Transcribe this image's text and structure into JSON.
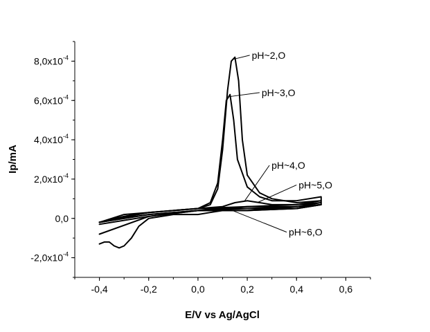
{
  "chart_data": {
    "type": "line",
    "title": "",
    "xlabel": "E/V vs Ag/AgCl",
    "ylabel": "Ip/mA",
    "xlim": [
      -0.5,
      0.7
    ],
    "ylim": [
      -0.0003,
      0.0009
    ],
    "grid": false,
    "legend": "none",
    "x_ticks": [
      {
        "v": -0.4,
        "label": "-0,4"
      },
      {
        "v": -0.2,
        "label": "-0,2"
      },
      {
        "v": 0.0,
        "label": "0,0"
      },
      {
        "v": 0.2,
        "label": "0,2"
      },
      {
        "v": 0.4,
        "label": "0,4"
      },
      {
        "v": 0.6,
        "label": "0,6"
      }
    ],
    "y_ticks": [
      {
        "v": 0.0008,
        "mant": "8,0x10",
        "exp": "-4"
      },
      {
        "v": 0.0006,
        "mant": "6,0x10",
        "exp": "-4"
      },
      {
        "v": 0.0004,
        "mant": "4,0x10",
        "exp": "-4"
      },
      {
        "v": 0.0002,
        "mant": "2,0x10",
        "exp": "-4"
      },
      {
        "v": 0.0,
        "mant": "0,0",
        "exp": ""
      },
      {
        "v": -0.0002,
        "mant": "-2,0x10",
        "exp": "-4"
      }
    ],
    "series": [
      {
        "label_id": "ph2",
        "points": [
          [
            -0.4,
            -2e-05
          ],
          [
            -0.3,
            1e-05
          ],
          [
            -0.2,
            3e-05
          ],
          [
            -0.1,
            4e-05
          ],
          [
            0.0,
            5e-05
          ],
          [
            0.05,
            7e-05
          ],
          [
            0.08,
            0.00015
          ],
          [
            0.1,
            0.00035
          ],
          [
            0.12,
            0.00065
          ],
          [
            0.135,
            0.0008
          ],
          [
            0.15,
            0.00082
          ],
          [
            0.165,
            0.0007
          ],
          [
            0.18,
            0.0004
          ],
          [
            0.2,
            0.00022
          ],
          [
            0.25,
            0.00013
          ],
          [
            0.3,
            0.0001
          ],
          [
            0.4,
            8e-05
          ],
          [
            0.5,
            9e-05
          ],
          [
            0.5,
            7e-05
          ],
          [
            0.4,
            5e-05
          ],
          [
            0.2,
            5e-05
          ],
          [
            0.0,
            5e-05
          ],
          [
            -0.2,
            3e-05
          ],
          [
            -0.3,
            1e-05
          ],
          [
            -0.4,
            -2e-05
          ]
        ]
      },
      {
        "label_id": "ph3",
        "points": [
          [
            -0.4,
            -2e-05
          ],
          [
            -0.3,
            2e-05
          ],
          [
            -0.2,
            3e-05
          ],
          [
            -0.1,
            4e-05
          ],
          [
            0.0,
            5e-05
          ],
          [
            0.05,
            8e-05
          ],
          [
            0.08,
            0.00018
          ],
          [
            0.1,
            0.0004
          ],
          [
            0.115,
            0.0006
          ],
          [
            0.13,
            0.00063
          ],
          [
            0.145,
            0.0005
          ],
          [
            0.16,
            0.0003
          ],
          [
            0.2,
            0.00016
          ],
          [
            0.25,
            0.00011
          ],
          [
            0.3,
            9e-05
          ],
          [
            0.4,
            9e-05
          ],
          [
            0.5,
            0.00011
          ],
          [
            0.5,
            9e-05
          ],
          [
            0.4,
            7e-05
          ],
          [
            0.2,
            6e-05
          ],
          [
            0.0,
            5e-05
          ],
          [
            -0.2,
            3e-05
          ],
          [
            -0.3,
            1e-05
          ],
          [
            -0.4,
            -2e-05
          ]
        ]
      },
      {
        "label_id": "ph4",
        "points": [
          [
            -0.4,
            -2e-05
          ],
          [
            -0.2,
            3e-05
          ],
          [
            0.0,
            5e-05
          ],
          [
            0.1,
            6e-05
          ],
          [
            0.15,
            8e-05
          ],
          [
            0.2,
            9e-05
          ],
          [
            0.25,
            8e-05
          ],
          [
            0.3,
            7e-05
          ],
          [
            0.4,
            7e-05
          ],
          [
            0.5,
            8e-05
          ],
          [
            0.4,
            6e-05
          ],
          [
            0.2,
            5e-05
          ],
          [
            0.0,
            4e-05
          ],
          [
            -0.2,
            2e-05
          ],
          [
            -0.4,
            -2e-05
          ]
        ]
      },
      {
        "label_id": "ph5",
        "points": [
          [
            -0.4,
            -2e-05
          ],
          [
            -0.2,
            2e-05
          ],
          [
            0.0,
            4e-05
          ],
          [
            0.1,
            5e-05
          ],
          [
            0.2,
            6e-05
          ],
          [
            0.3,
            6e-05
          ],
          [
            0.4,
            6e-05
          ],
          [
            0.5,
            7e-05
          ],
          [
            0.4,
            5e-05
          ],
          [
            0.2,
            4e-05
          ],
          [
            0.0,
            4e-05
          ],
          [
            -0.2,
            1e-05
          ],
          [
            -0.4,
            -3e-05
          ]
        ]
      },
      {
        "label_id": "ph6",
        "points": [
          [
            -0.4,
            -0.00013
          ],
          [
            -0.38,
            -0.00012
          ],
          [
            -0.36,
            -0.00012
          ],
          [
            -0.34,
            -0.00014
          ],
          [
            -0.32,
            -0.00015
          ],
          [
            -0.3,
            -0.00014
          ],
          [
            -0.27,
            -0.0001
          ],
          [
            -0.24,
            -4e-05
          ],
          [
            -0.2,
            0.0
          ],
          [
            -0.1,
            2e-05
          ],
          [
            0.0,
            2e-05
          ],
          [
            0.05,
            3e-05
          ],
          [
            0.1,
            4e-05
          ],
          [
            0.2,
            4e-05
          ],
          [
            0.3,
            5e-05
          ],
          [
            0.4,
            6e-05
          ],
          [
            0.5,
            7e-05
          ],
          [
            0.4,
            5e-05
          ],
          [
            0.2,
            4e-05
          ],
          [
            0.0,
            4e-05
          ],
          [
            -0.2,
            1e-05
          ],
          [
            -0.4,
            -8e-05
          ]
        ]
      }
    ],
    "annotations": [
      {
        "id": "ph2",
        "text": "pH~2,O",
        "at": [
          0.145,
          0.00081
        ],
        "label_at": [
          0.21,
          0.00083
        ],
        "anchor": "start"
      },
      {
        "id": "ph3",
        "text": "pH~3,O",
        "at": [
          0.13,
          0.00062
        ],
        "label_at": [
          0.25,
          0.00064
        ],
        "anchor": "start"
      },
      {
        "id": "ph4",
        "text": "pH~4,O",
        "at": [
          0.19,
          9e-05
        ],
        "label_at": [
          0.29,
          0.00027
        ],
        "anchor": "start"
      },
      {
        "id": "ph5",
        "text": "pH~5,O",
        "at": [
          0.24,
          8e-05
        ],
        "label_at": [
          0.4,
          0.00017
        ],
        "anchor": "start"
      },
      {
        "id": "ph6",
        "text": "pH~6,O",
        "at": [
          0.12,
          5e-05
        ],
        "label_at": [
          0.36,
          -7e-05
        ],
        "anchor": "start"
      }
    ]
  }
}
